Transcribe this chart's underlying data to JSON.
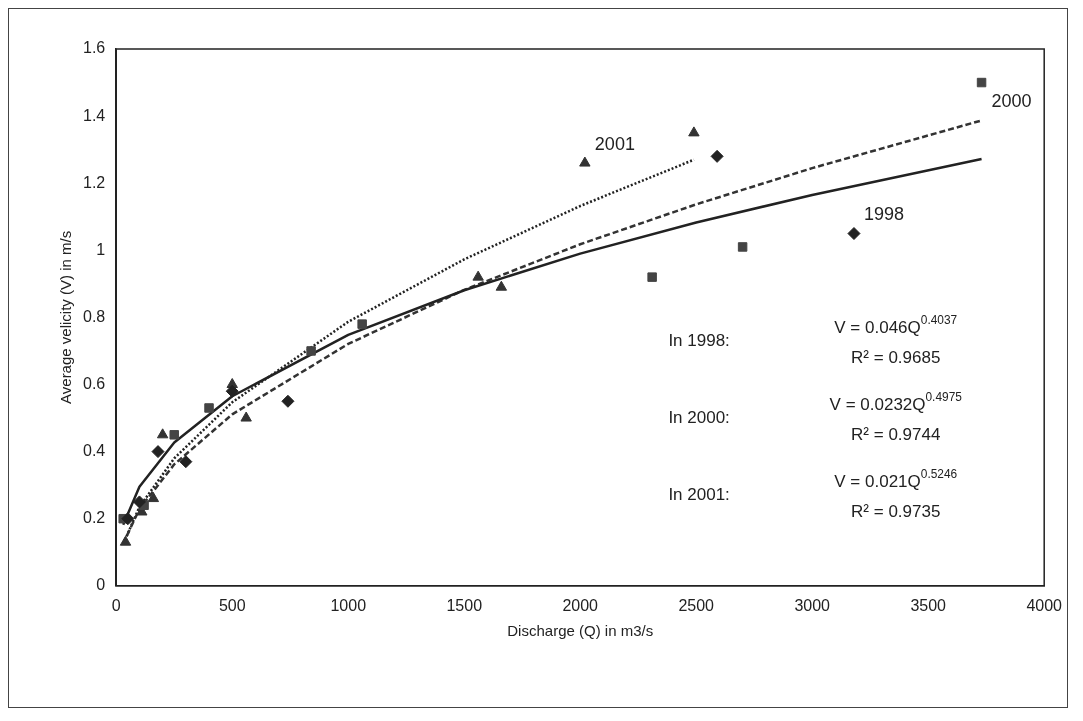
{
  "chart_data": {
    "type": "scatter",
    "xlabel": "Discharge (Q) in m3/s",
    "ylabel": "Average velicity (V) in m/s",
    "xlim": [
      0,
      4000
    ],
    "xticks": [
      0,
      500,
      1000,
      1500,
      2000,
      2500,
      3000,
      3500,
      4000
    ],
    "ylim": [
      0,
      1.6
    ],
    "yticks": [
      0,
      0.2,
      0.4,
      0.6,
      0.8,
      1,
      1.2,
      1.4,
      1.6
    ],
    "grid": false,
    "series": [
      {
        "type": "scatter",
        "marker": "diamond",
        "color": "#222222",
        "x": [
          50,
          100,
          180,
          300,
          500,
          740,
          2590,
          3180
        ],
        "values": [
          0.2,
          0.25,
          0.4,
          0.37,
          0.58,
          0.55,
          1.28,
          1.05
        ]
      },
      {
        "type": "scatter",
        "marker": "square",
        "color": "#444444",
        "x": [
          30,
          60,
          120,
          250,
          400,
          840,
          1060,
          2310,
          2700,
          3730
        ],
        "values": [
          0.2,
          null,
          0.24,
          0.45,
          0.53,
          0.7,
          0.78,
          0.92,
          1.01,
          1.5
        ]
      },
      {
        "type": "scatter",
        "marker": "triangle",
        "color": "#333333",
        "x": [
          40,
          110,
          160,
          200,
          500,
          560,
          1560,
          1660,
          2020,
          2490
        ],
        "values": [
          0.13,
          0.22,
          0.26,
          0.45,
          0.6,
          0.5,
          0.92,
          0.89,
          1.26,
          1.35
        ]
      },
      {
        "type": "line",
        "line_style": "solid",
        "color": "#222222",
        "x": [
          30,
          100,
          250,
          500,
          1000,
          1500,
          2000,
          2500,
          3000,
          3730
        ],
        "values": [
          0.182,
          0.295,
          0.427,
          0.565,
          0.748,
          0.881,
          0.99,
          1.083,
          1.165,
          1.272
        ]
      },
      {
        "type": "line",
        "line_style": "dashed",
        "color": "#333333",
        "x": [
          30,
          100,
          250,
          500,
          1000,
          1500,
          2000,
          2500,
          3000,
          3730
        ],
        "values": [
          0.126,
          0.229,
          0.362,
          0.511,
          0.721,
          0.882,
          1.018,
          1.137,
          1.245,
          1.387
        ]
      },
      {
        "type": "line",
        "line_style": "dotted",
        "color": "#222222",
        "x": [
          30,
          100,
          250,
          500,
          1000,
          1500,
          2000,
          2490
        ],
        "values": [
          0.125,
          0.235,
          0.38,
          0.547,
          0.787,
          0.973,
          1.132,
          1.27
        ]
      }
    ],
    "annotations": [
      {
        "text": "1998",
        "x": 3180,
        "y": 1.05
      },
      {
        "text": "2000",
        "x": 3730,
        "y": 1.387
      },
      {
        "text": "2001",
        "x": 2020,
        "y": 1.26
      },
      "In 1998:",
      "V = 0.046Q$^{0.4037}$",
      "R² = 0.9685",
      "In 2000:",
      "V = 0.0232Q$^{0.4975}$",
      "R² = 0.9744",
      "In 2001:",
      "V = 0.021Q$^{0.5246}$",
      "R² = 0.9735"
    ]
  }
}
